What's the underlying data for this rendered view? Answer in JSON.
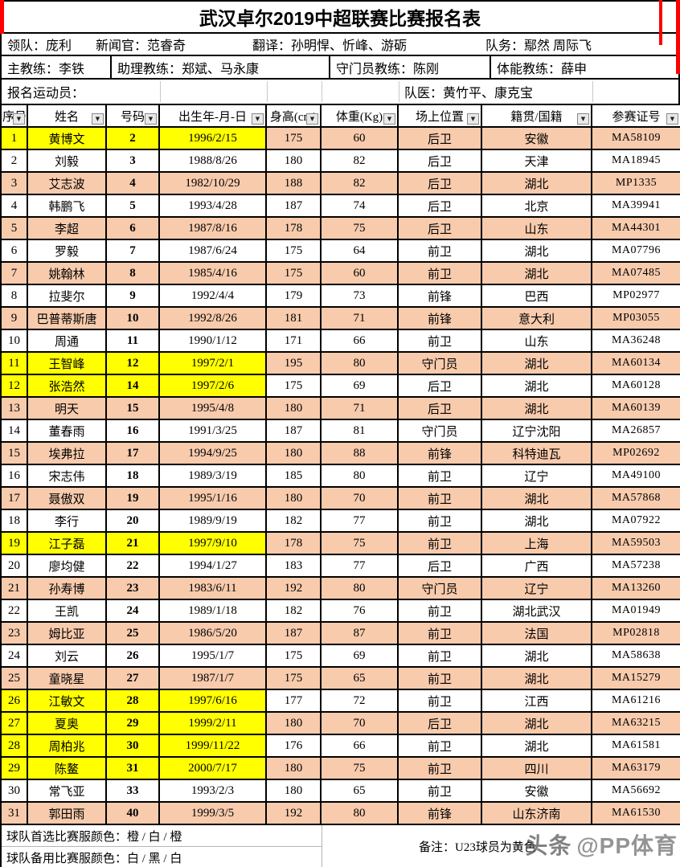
{
  "title": "武汉卓尔2019中超联赛比赛报名表",
  "staff_row1": [
    "领队：庞利",
    "新闻官：范睿奇",
    "翻译：孙明悍、忻峰、游砺",
    "队务：鄢然 周际飞"
  ],
  "staff_row2": [
    "主教练：李铁",
    "助理教练：郑斌、马永康",
    "守门员教练：陈刚",
    "体能教练：薛申"
  ],
  "section_row": {
    "left": "报名运动员：",
    "right": "队医：黄竹平、康克宝"
  },
  "columns": [
    "序号",
    "姓名",
    "号码",
    "出生年-月-日",
    "身高(cm)",
    "体重(Kg)",
    "场上位置",
    "籍贯/国籍",
    "参赛证号"
  ],
  "players": [
    {
      "no": "1",
      "name": "黄博文",
      "number": "2",
      "dob": "1996/2/15",
      "height": "175",
      "weight": "60",
      "position": "后卫",
      "origin": "安徽",
      "cert": "MA58109",
      "u23": true
    },
    {
      "no": "2",
      "name": "刘毅",
      "number": "3",
      "dob": "1988/8/26",
      "height": "180",
      "weight": "82",
      "position": "后卫",
      "origin": "天津",
      "cert": "MA18945",
      "u23": false
    },
    {
      "no": "3",
      "name": "艾志波",
      "number": "4",
      "dob": "1982/10/29",
      "height": "188",
      "weight": "82",
      "position": "后卫",
      "origin": "湖北",
      "cert": "MP1335",
      "u23": false
    },
    {
      "no": "4",
      "name": "韩鹏飞",
      "number": "5",
      "dob": "1993/4/28",
      "height": "187",
      "weight": "74",
      "position": "后卫",
      "origin": "北京",
      "cert": "MA39941",
      "u23": false
    },
    {
      "no": "5",
      "name": "李超",
      "number": "6",
      "dob": "1987/8/16",
      "height": "178",
      "weight": "75",
      "position": "后卫",
      "origin": "山东",
      "cert": "MA44301",
      "u23": false
    },
    {
      "no": "6",
      "name": "罗毅",
      "number": "7",
      "dob": "1987/6/24",
      "height": "175",
      "weight": "64",
      "position": "前卫",
      "origin": "湖北",
      "cert": "MA07796",
      "u23": false
    },
    {
      "no": "7",
      "name": "姚翰林",
      "number": "8",
      "dob": "1985/4/16",
      "height": "175",
      "weight": "60",
      "position": "前卫",
      "origin": "湖北",
      "cert": "MA07485",
      "u23": false
    },
    {
      "no": "8",
      "name": "拉斐尔",
      "number": "9",
      "dob": "1992/4/4",
      "height": "179",
      "weight": "73",
      "position": "前锋",
      "origin": "巴西",
      "cert": "MP02977",
      "u23": false
    },
    {
      "no": "9",
      "name": "巴普蒂斯唐",
      "number": "10",
      "dob": "1992/8/26",
      "height": "181",
      "weight": "71",
      "position": "前锋",
      "origin": "意大利",
      "cert": "MP03055",
      "u23": false
    },
    {
      "no": "10",
      "name": "周通",
      "number": "11",
      "dob": "1990/1/12",
      "height": "171",
      "weight": "66",
      "position": "前卫",
      "origin": "山东",
      "cert": "MA36248",
      "u23": false
    },
    {
      "no": "11",
      "name": "王智峰",
      "number": "12",
      "dob": "1997/2/1",
      "height": "195",
      "weight": "80",
      "position": "守门员",
      "origin": "湖北",
      "cert": "MA60134",
      "u23": true
    },
    {
      "no": "12",
      "name": "张浩然",
      "number": "14",
      "dob": "1997/2/6",
      "height": "175",
      "weight": "69",
      "position": "后卫",
      "origin": "湖北",
      "cert": "MA60128",
      "u23": true
    },
    {
      "no": "13",
      "name": "明天",
      "number": "15",
      "dob": "1995/4/8",
      "height": "180",
      "weight": "71",
      "position": "后卫",
      "origin": "湖北",
      "cert": "MA60139",
      "u23": false
    },
    {
      "no": "14",
      "name": "董春雨",
      "number": "16",
      "dob": "1991/3/25",
      "height": "187",
      "weight": "81",
      "position": "守门员",
      "origin": "辽宁沈阳",
      "cert": "MA26857",
      "u23": false
    },
    {
      "no": "15",
      "name": "埃弗拉",
      "number": "17",
      "dob": "1994/9/25",
      "height": "180",
      "weight": "88",
      "position": "前锋",
      "origin": "科特迪瓦",
      "cert": "MP02692",
      "u23": false
    },
    {
      "no": "16",
      "name": "宋志伟",
      "number": "18",
      "dob": "1989/3/19",
      "height": "185",
      "weight": "80",
      "position": "前卫",
      "origin": "辽宁",
      "cert": "MA49100",
      "u23": false
    },
    {
      "no": "17",
      "name": "聂傲双",
      "number": "19",
      "dob": "1995/1/16",
      "height": "180",
      "weight": "70",
      "position": "前卫",
      "origin": "湖北",
      "cert": "MA57868",
      "u23": false
    },
    {
      "no": "18",
      "name": "李行",
      "number": "20",
      "dob": "1989/9/19",
      "height": "182",
      "weight": "77",
      "position": "前卫",
      "origin": "湖北",
      "cert": "MA07922",
      "u23": false
    },
    {
      "no": "19",
      "name": "江子磊",
      "number": "21",
      "dob": "1997/9/10",
      "height": "178",
      "weight": "75",
      "position": "前卫",
      "origin": "上海",
      "cert": "MA59503",
      "u23": true
    },
    {
      "no": "20",
      "name": "廖均健",
      "number": "22",
      "dob": "1994/1/27",
      "height": "183",
      "weight": "77",
      "position": "后卫",
      "origin": "广西",
      "cert": "MA57238",
      "u23": false
    },
    {
      "no": "21",
      "name": "孙寿博",
      "number": "23",
      "dob": "1983/6/11",
      "height": "192",
      "weight": "80",
      "position": "守门员",
      "origin": "辽宁",
      "cert": "MA13260",
      "u23": false
    },
    {
      "no": "22",
      "name": "王凯",
      "number": "24",
      "dob": "1989/1/18",
      "height": "182",
      "weight": "76",
      "position": "前卫",
      "origin": "湖北武汉",
      "cert": "MA01949",
      "u23": false
    },
    {
      "no": "23",
      "name": "姆比亚",
      "number": "25",
      "dob": "1986/5/20",
      "height": "187",
      "weight": "87",
      "position": "前卫",
      "origin": "法国",
      "cert": "MP02818",
      "u23": false
    },
    {
      "no": "24",
      "name": "刘云",
      "number": "26",
      "dob": "1995/1/7",
      "height": "175",
      "weight": "69",
      "position": "前卫",
      "origin": "湖北",
      "cert": "MA58638",
      "u23": false
    },
    {
      "no": "25",
      "name": "童晓星",
      "number": "27",
      "dob": "1987/1/7",
      "height": "175",
      "weight": "65",
      "position": "前卫",
      "origin": "湖北",
      "cert": "MA15279",
      "u23": false
    },
    {
      "no": "26",
      "name": "江敏文",
      "number": "28",
      "dob": "1997/6/16",
      "height": "177",
      "weight": "72",
      "position": "前卫",
      "origin": "江西",
      "cert": "MA61216",
      "u23": true
    },
    {
      "no": "27",
      "name": "夏奥",
      "number": "29",
      "dob": "1999/2/11",
      "height": "180",
      "weight": "70",
      "position": "后卫",
      "origin": "湖北",
      "cert": "MA63215",
      "u23": true
    },
    {
      "no": "28",
      "name": "周柏兆",
      "number": "30",
      "dob": "1999/11/22",
      "height": "176",
      "weight": "66",
      "position": "前卫",
      "origin": "湖北",
      "cert": "MA61581",
      "u23": true
    },
    {
      "no": "29",
      "name": "陈鳌",
      "number": "31",
      "dob": "2000/7/17",
      "height": "180",
      "weight": "75",
      "position": "前卫",
      "origin": "四川",
      "cert": "MA63179",
      "u23": true
    },
    {
      "no": "30",
      "name": "常飞亚",
      "number": "33",
      "dob": "1993/2/3",
      "height": "180",
      "weight": "65",
      "position": "前卫",
      "origin": "安徽",
      "cert": "MA56692",
      "u23": false
    },
    {
      "no": "31",
      "name": "郭田雨",
      "number": "40",
      "dob": "1999/3/5",
      "height": "192",
      "weight": "80",
      "position": "前锋",
      "origin": "山东济南",
      "cert": "MA61530",
      "u23": false
    }
  ],
  "footer": {
    "kit_primary": "球队首选比赛服颜色：橙  /  白  /  橙",
    "kit_backup": "球队备用比赛服颜色：白  /  黑  /  白",
    "note": "备注：U23球员为黄色"
  },
  "watermark": {
    "logo": "头条",
    "handle": "@PP体育"
  },
  "icons": {
    "filter_arrow": "▼"
  },
  "colors": {
    "u23_highlight": "#FFFF00",
    "row_alt": "#F8CBAD",
    "edge_marker": "#FE0000"
  }
}
